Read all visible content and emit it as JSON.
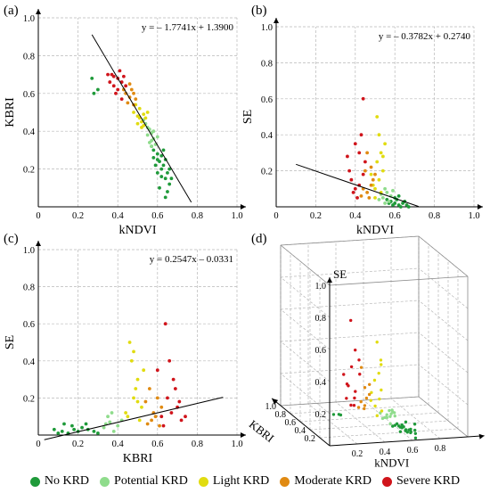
{
  "legend": {
    "items": [
      {
        "label": "No KRD",
        "color": "#1f9a3a"
      },
      {
        "label": "Potential KRD",
        "color": "#8fdc8c"
      },
      {
        "label": "Light KRD",
        "color": "#e1dc10"
      },
      {
        "label": "Moderate KRD",
        "color": "#e08a12"
      },
      {
        "label": "Severe KRD",
        "color": "#d0141b"
      }
    ]
  },
  "chart_data": [
    {
      "panel": "(a)",
      "type": "scatter",
      "xlabel": "kNDVI",
      "ylabel": "KBRI",
      "xlim": [
        0,
        1.0
      ],
      "ylim": [
        0,
        1.0
      ],
      "ticks": [
        "0",
        "0.2",
        "0.4",
        "0.6",
        "0.8",
        "1.0"
      ],
      "grid": true,
      "equation": "y = – 1.7741x + 1.3900",
      "fit_line": {
        "x_start": 0.27,
        "x_end": 0.77
      },
      "series": [
        {
          "name": "No KRD",
          "points": [
            [
              0.6,
              0.25
            ],
            [
              0.62,
              0.2
            ],
            [
              0.64,
              0.15
            ],
            [
              0.58,
              0.3
            ],
            [
              0.63,
              0.22
            ],
            [
              0.61,
              0.1
            ],
            [
              0.65,
              0.18
            ],
            [
              0.6,
              0.28
            ],
            [
              0.66,
              0.12
            ],
            [
              0.62,
              0.27
            ],
            [
              0.59,
              0.22
            ],
            [
              0.64,
              0.25
            ],
            [
              0.67,
              0.15
            ],
            [
              0.6,
              0.18
            ],
            [
              0.63,
              0.3
            ],
            [
              0.57,
              0.32
            ],
            [
              0.61,
              0.24
            ],
            [
              0.65,
              0.08
            ],
            [
              0.62,
              0.16
            ],
            [
              0.58,
              0.26
            ],
            [
              0.66,
              0.2
            ],
            [
              0.3,
              0.62
            ],
            [
              0.28,
              0.6
            ],
            [
              0.27,
              0.68
            ],
            [
              0.64,
              0.05
            ]
          ]
        },
        {
          "name": "Potential KRD",
          "points": [
            [
              0.55,
              0.38
            ],
            [
              0.57,
              0.35
            ],
            [
              0.56,
              0.41
            ],
            [
              0.58,
              0.36
            ],
            [
              0.54,
              0.44
            ],
            [
              0.59,
              0.33
            ],
            [
              0.57,
              0.39
            ],
            [
              0.56,
              0.34
            ],
            [
              0.55,
              0.42
            ],
            [
              0.58,
              0.4
            ],
            [
              0.6,
              0.37
            ],
            [
              0.53,
              0.46
            ],
            [
              0.57,
              0.32
            ]
          ]
        },
        {
          "name": "Light KRD",
          "points": [
            [
              0.5,
              0.48
            ],
            [
              0.52,
              0.45
            ],
            [
              0.51,
              0.52
            ],
            [
              0.53,
              0.49
            ],
            [
              0.49,
              0.54
            ],
            [
              0.54,
              0.47
            ],
            [
              0.52,
              0.42
            ],
            [
              0.5,
              0.44
            ],
            [
              0.55,
              0.5
            ],
            [
              0.48,
              0.5
            ],
            [
              0.53,
              0.43
            ],
            [
              0.51,
              0.47
            ]
          ]
        },
        {
          "name": "Moderate KRD",
          "points": [
            [
              0.46,
              0.58
            ],
            [
              0.48,
              0.6
            ],
            [
              0.45,
              0.55
            ],
            [
              0.47,
              0.62
            ],
            [
              0.49,
              0.57
            ],
            [
              0.44,
              0.6
            ],
            [
              0.46,
              0.65
            ],
            [
              0.48,
              0.54
            ],
            [
              0.43,
              0.62
            ]
          ]
        },
        {
          "name": "Severe KRD",
          "points": [
            [
              0.37,
              0.7
            ],
            [
              0.4,
              0.68
            ],
            [
              0.42,
              0.66
            ],
            [
              0.38,
              0.64
            ],
            [
              0.41,
              0.72
            ],
            [
              0.36,
              0.66
            ],
            [
              0.43,
              0.69
            ],
            [
              0.39,
              0.6
            ],
            [
              0.35,
              0.7
            ],
            [
              0.44,
              0.64
            ],
            [
              0.4,
              0.62
            ],
            [
              0.42,
              0.57
            ],
            [
              0.38,
              0.69
            ]
          ]
        }
      ]
    },
    {
      "panel": "(b)",
      "type": "scatter",
      "xlabel": "kNDVI",
      "ylabel": "SE",
      "xlim": [
        0,
        1.0
      ],
      "ylim": [
        0,
        1.0
      ],
      "ticks": [
        "0",
        "0.2",
        "0.4",
        "0.6",
        "0.8",
        "1.0"
      ],
      "grid": true,
      "equation": "y = – 0.3782x + 0.2740",
      "fit_line": {
        "x_start": 0.1,
        "x_end": 0.72
      },
      "series": [
        {
          "name": "No KRD",
          "points": [
            [
              0.6,
              0.02
            ],
            [
              0.62,
              0.01
            ],
            [
              0.58,
              0.03
            ],
            [
              0.64,
              0.02
            ],
            [
              0.66,
              0.01
            ],
            [
              0.61,
              0.04
            ],
            [
              0.63,
              0.0
            ],
            [
              0.57,
              0.02
            ],
            [
              0.65,
              0.03
            ],
            [
              0.59,
              0.01
            ],
            [
              0.67,
              0.0
            ],
            [
              0.6,
              0.05
            ],
            [
              0.62,
              0.06
            ],
            [
              0.56,
              0.04
            ]
          ]
        },
        {
          "name": "Potential KRD",
          "points": [
            [
              0.54,
              0.05
            ],
            [
              0.56,
              0.08
            ],
            [
              0.58,
              0.06
            ],
            [
              0.55,
              0.1
            ],
            [
              0.57,
              0.03
            ],
            [
              0.53,
              0.07
            ],
            [
              0.59,
              0.09
            ],
            [
              0.55,
              0.02
            ],
            [
              0.52,
              0.04
            ]
          ]
        },
        {
          "name": "Light KRD",
          "points": [
            [
              0.5,
              0.1
            ],
            [
              0.52,
              0.15
            ],
            [
              0.51,
              0.25
            ],
            [
              0.53,
              0.3
            ],
            [
              0.49,
              0.12
            ],
            [
              0.54,
              0.2
            ],
            [
              0.52,
              0.4
            ],
            [
              0.5,
              0.05
            ],
            [
              0.55,
              0.35
            ],
            [
              0.48,
              0.18
            ],
            [
              0.53,
              0.08
            ],
            [
              0.51,
              0.5
            ],
            [
              0.54,
              0.28
            ]
          ]
        },
        {
          "name": "Moderate KRD",
          "points": [
            [
              0.46,
              0.08
            ],
            [
              0.48,
              0.12
            ],
            [
              0.45,
              0.2
            ],
            [
              0.47,
              0.05
            ],
            [
              0.49,
              0.15
            ],
            [
              0.44,
              0.1
            ],
            [
              0.46,
              0.3
            ],
            [
              0.48,
              0.22
            ],
            [
              0.43,
              0.06
            ],
            [
              0.5,
              0.18
            ]
          ]
        },
        {
          "name": "Severe KRD",
          "points": [
            [
              0.4,
              0.1
            ],
            [
              0.42,
              0.3
            ],
            [
              0.38,
              0.15
            ],
            [
              0.44,
              0.6
            ],
            [
              0.41,
              0.05
            ],
            [
              0.37,
              0.2
            ],
            [
              0.43,
              0.4
            ],
            [
              0.39,
              0.08
            ],
            [
              0.45,
              0.25
            ],
            [
              0.4,
              0.35
            ],
            [
              0.42,
              0.12
            ],
            [
              0.36,
              0.28
            ],
            [
              0.44,
              0.18
            ]
          ]
        }
      ]
    },
    {
      "panel": "(c)",
      "type": "scatter",
      "xlabel": "KBRI",
      "ylabel": "SE",
      "xlim": [
        0,
        1.0
      ],
      "ylim": [
        0,
        1.0
      ],
      "ticks": [
        "0",
        "0.2",
        "0.4",
        "0.6",
        "0.8",
        "1.0"
      ],
      "grid": true,
      "equation": "y = 0.2547x – 0.0331",
      "fit_line": {
        "x_start": 0.03,
        "x_end": 0.93
      },
      "series": [
        {
          "name": "No KRD",
          "points": [
            [
              0.12,
              0.02
            ],
            [
              0.15,
              0.01
            ],
            [
              0.18,
              0.03
            ],
            [
              0.2,
              0.02
            ],
            [
              0.22,
              0.04
            ],
            [
              0.1,
              0.01
            ],
            [
              0.25,
              0.03
            ],
            [
              0.17,
              0.05
            ],
            [
              0.28,
              0.02
            ],
            [
              0.13,
              0.06
            ],
            [
              0.3,
              0.01
            ],
            [
              0.08,
              0.03
            ],
            [
              0.24,
              0.06
            ]
          ]
        },
        {
          "name": "Potential KRD",
          "points": [
            [
              0.33,
              0.04
            ],
            [
              0.36,
              0.07
            ],
            [
              0.38,
              0.02
            ],
            [
              0.35,
              0.1
            ],
            [
              0.4,
              0.05
            ],
            [
              0.37,
              0.12
            ],
            [
              0.34,
              0.06
            ],
            [
              0.42,
              0.08
            ]
          ]
        },
        {
          "name": "Light KRD",
          "points": [
            [
              0.45,
              0.1
            ],
            [
              0.48,
              0.2
            ],
            [
              0.5,
              0.3
            ],
            [
              0.47,
              0.4
            ],
            [
              0.52,
              0.15
            ],
            [
              0.46,
              0.5
            ],
            [
              0.49,
              0.25
            ],
            [
              0.51,
              0.08
            ],
            [
              0.44,
              0.12
            ],
            [
              0.53,
              0.35
            ],
            [
              0.48,
              0.45
            ],
            [
              0.5,
              0.18
            ]
          ]
        },
        {
          "name": "Moderate KRD",
          "points": [
            [
              0.55,
              0.06
            ],
            [
              0.58,
              0.12
            ],
            [
              0.6,
              0.2
            ],
            [
              0.57,
              0.08
            ],
            [
              0.62,
              0.15
            ],
            [
              0.56,
              0.25
            ],
            [
              0.59,
              0.1
            ],
            [
              0.61,
              0.05
            ],
            [
              0.54,
              0.18
            ]
          ]
        },
        {
          "name": "Severe KRD",
          "points": [
            [
              0.62,
              0.1
            ],
            [
              0.65,
              0.2
            ],
            [
              0.68,
              0.3
            ],
            [
              0.7,
              0.15
            ],
            [
              0.64,
              0.6
            ],
            [
              0.66,
              0.4
            ],
            [
              0.72,
              0.08
            ],
            [
              0.69,
              0.25
            ],
            [
              0.63,
              0.05
            ],
            [
              0.71,
              0.18
            ],
            [
              0.67,
              0.12
            ],
            [
              0.74,
              0.1
            ],
            [
              0.6,
              0.35
            ]
          ]
        }
      ]
    },
    {
      "panel": "(d)",
      "type": "scatter",
      "axes": [
        "kNDVI",
        "KBRI",
        "SE"
      ],
      "xlim": [
        0,
        1.0
      ],
      "ylim": [
        0,
        1.0
      ],
      "zlim": [
        0,
        1.0
      ],
      "ticks_kndvi": [
        "0.2",
        "0.4",
        "0.6",
        "0.8"
      ],
      "ticks_kbri": [
        "0.2",
        "0.4",
        "0.6",
        "0.8",
        "1.0"
      ],
      "ticks_se": [
        "0.2",
        "0.4",
        "0.6",
        "0.8",
        "1.0"
      ],
      "grid": true,
      "note": "3-D view of kNDVI, KBRI and SE"
    }
  ]
}
